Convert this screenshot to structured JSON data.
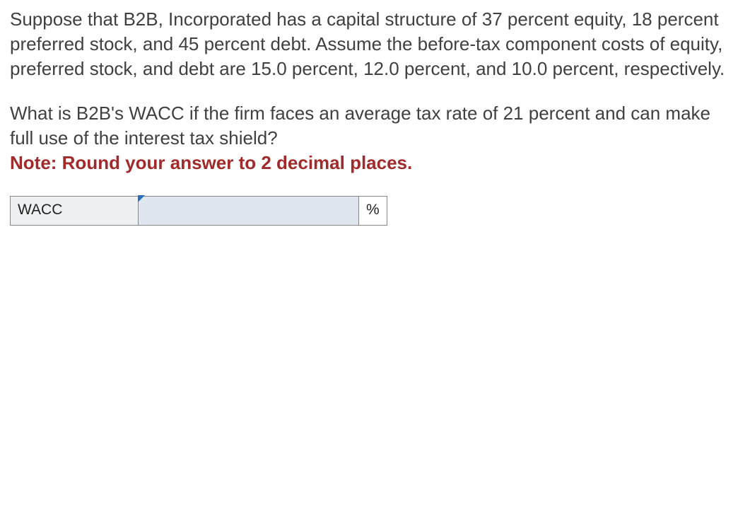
{
  "problem": {
    "paragraph1": "Suppose that B2B, Incorporated has a capital structure of 37 percent equity, 18 percent preferred stock, and 45 percent debt. Assume the before-tax component costs of equity, preferred stock, and debt are 15.0 percent, 12.0 percent, and 10.0 percent, respectively.",
    "paragraph2": "What is B2B's WACC if the firm faces an average tax rate of 21 percent and can make full use of the interest tax shield?",
    "note": "Note: Round your answer to 2 decimal places."
  },
  "answer_table": {
    "label": "WACC",
    "value": "",
    "unit": "%",
    "colors": {
      "label_bg": "#eef0f2",
      "input_bg": "#dfe6ef",
      "border": "#888888",
      "active_border": "#2a6fbf"
    }
  }
}
